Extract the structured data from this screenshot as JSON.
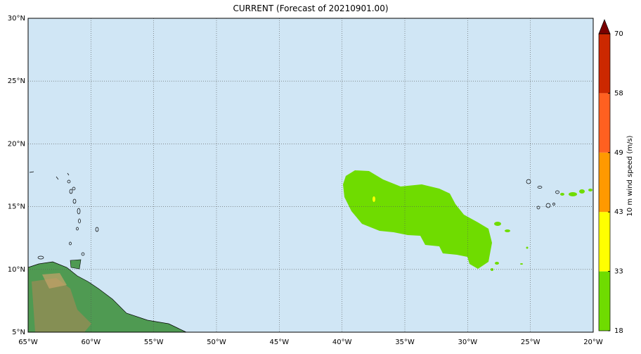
{
  "map": {
    "title": "CURRENT (Forecast of 20210901.00)",
    "xlim": [
      -65,
      -20
    ],
    "ylim": [
      5,
      30
    ],
    "xticks": [
      {
        "value": -65,
        "label": "65°W"
      },
      {
        "value": -60,
        "label": "60°W"
      },
      {
        "value": -55,
        "label": "55°W"
      },
      {
        "value": -50,
        "label": "50°W"
      },
      {
        "value": -45,
        "label": "45°W"
      },
      {
        "value": -40,
        "label": "40°W"
      },
      {
        "value": -35,
        "label": "35°W"
      },
      {
        "value": -30,
        "label": "30°W"
      },
      {
        "value": -25,
        "label": "25°W"
      },
      {
        "value": -20,
        "label": "20°W"
      }
    ],
    "yticks": [
      {
        "value": 5,
        "label": "5°N"
      },
      {
        "value": 10,
        "label": "10°N"
      },
      {
        "value": 15,
        "label": "15°N"
      },
      {
        "value": 20,
        "label": "20°N"
      },
      {
        "value": 25,
        "label": "25°N"
      },
      {
        "value": 30,
        "label": "30°N"
      }
    ],
    "grid": true
  },
  "colorbar": {
    "label": "10 m wind speed (m/s)",
    "ticks": [
      18,
      33,
      43,
      49,
      58,
      70
    ],
    "colors": [
      "#6fdc00",
      "#ffff00",
      "#ff9900",
      "#ff6020",
      "#cc2800"
    ],
    "extend_color": "#7a0000"
  }
}
